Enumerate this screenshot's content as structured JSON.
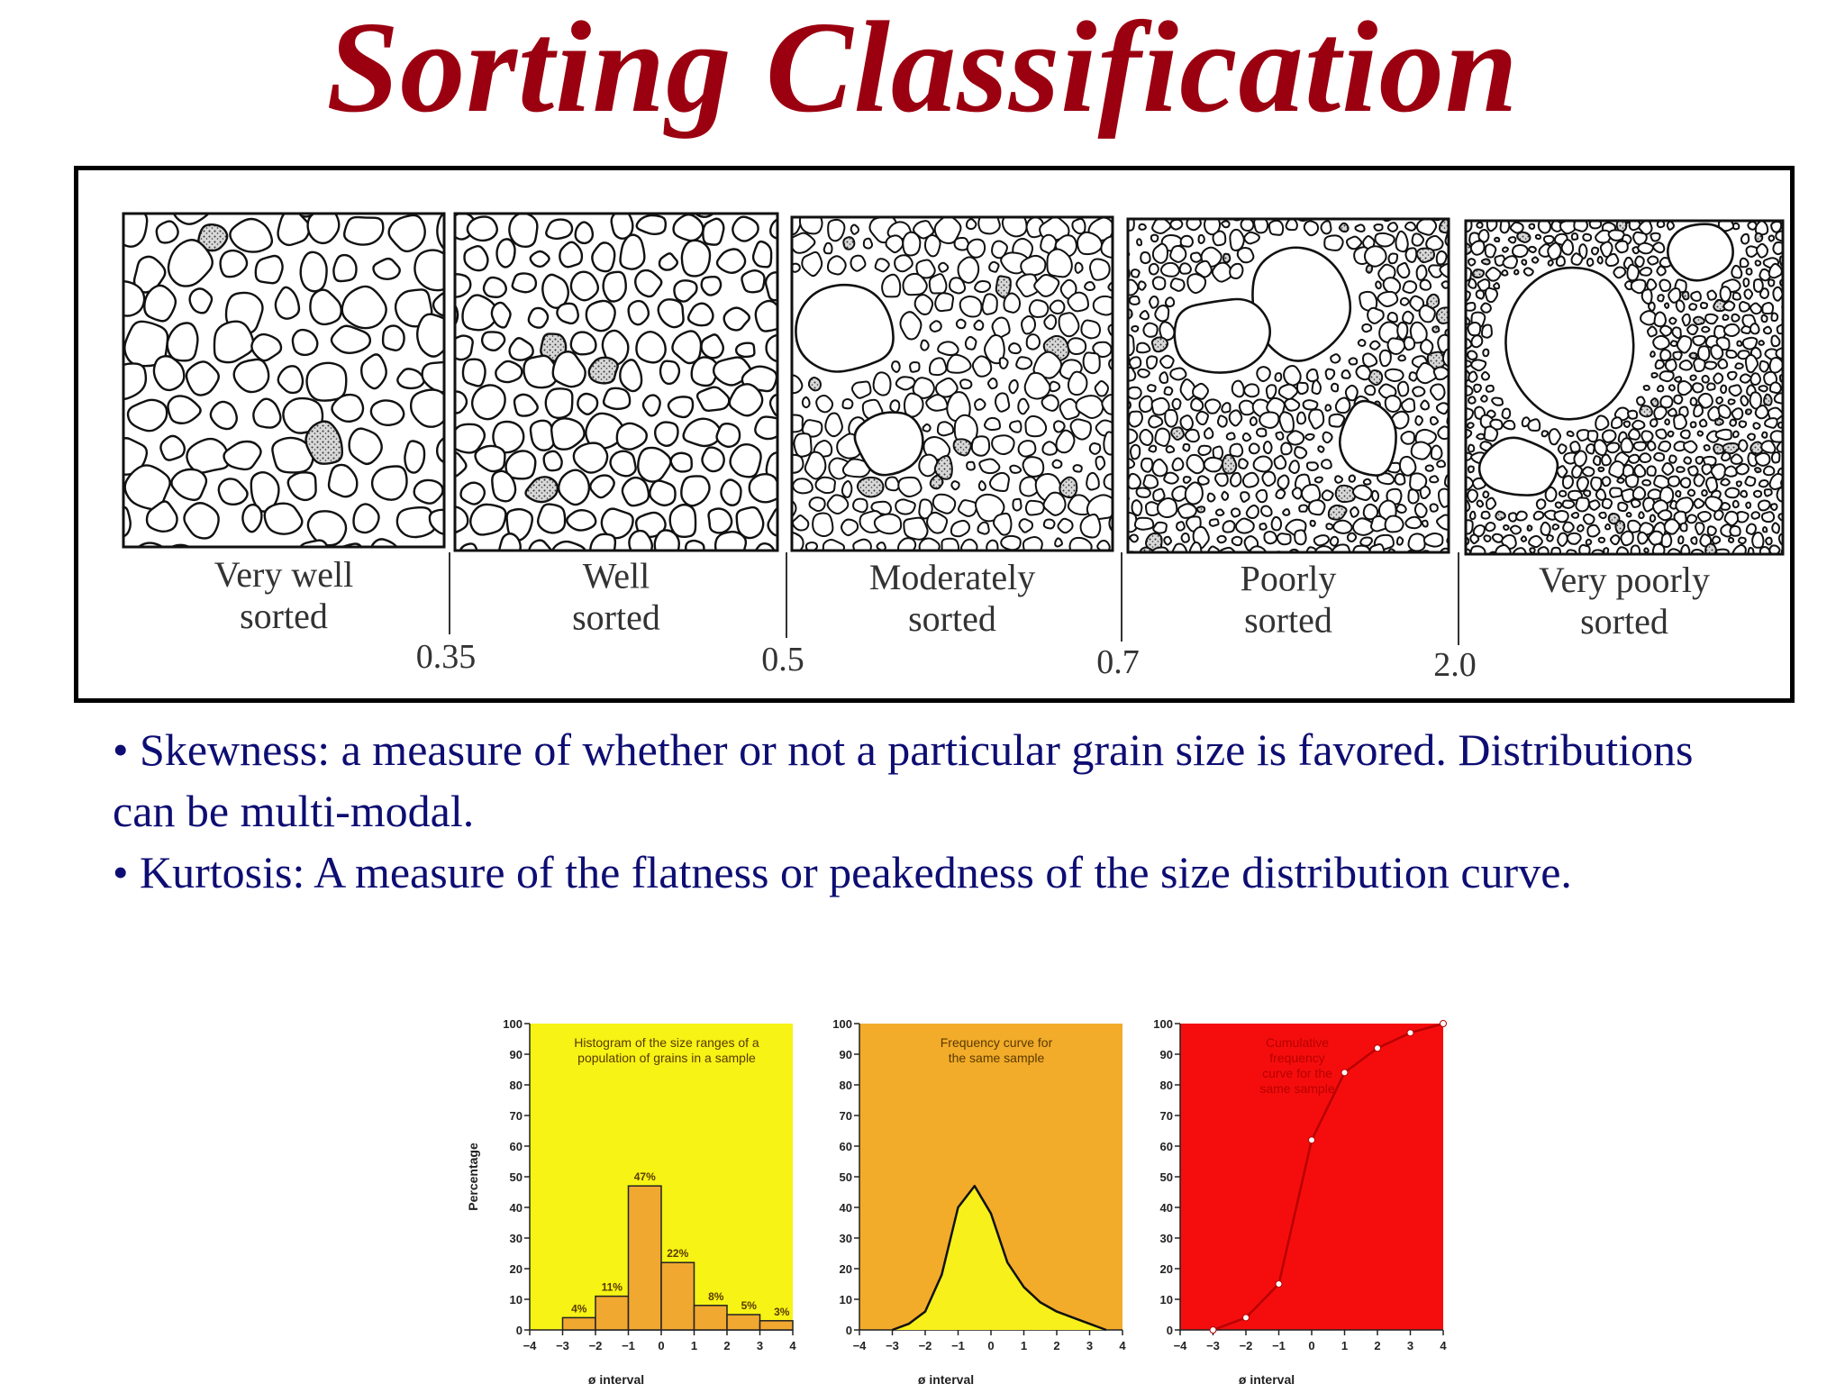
{
  "title": "Sorting Classification",
  "sorting_panels": [
    {
      "label_line1": "Very well",
      "label_line2": "sorted"
    },
    {
      "label_line1": "Well",
      "label_line2": "sorted"
    },
    {
      "label_line1": "Moderately",
      "label_line2": "sorted"
    },
    {
      "label_line1": "Poorly",
      "label_line2": "sorted"
    },
    {
      "label_line1": "Very poorly",
      "label_line2": "sorted"
    }
  ],
  "sorting_thresholds": [
    "0.35",
    "0.5",
    "0.7",
    "2.0"
  ],
  "bullets": [
    "• Skewness:  a measure of whether or not a particular grain size is favored. Distributions can be multi-modal.",
    "• Kurtosis:  A measure of the flatness or peakedness of the size distribution curve."
  ],
  "colors": {
    "title": "#9b0010",
    "bullet_text": "#0d0d73",
    "histogram_bg": "#f6f315",
    "frequency_bg": "#f2ac2a",
    "cumulative_bg": "#f50d0d",
    "bar_fill": "#f0a830"
  },
  "chart_data": [
    {
      "type": "bar",
      "title": "Histogram of the size ranges of a population of grains in a sample",
      "xlabel": "ø interval",
      "ylabel": "Percentage",
      "xlim": [
        -4,
        4
      ],
      "ylim": [
        0,
        100
      ],
      "xticks": [
        "-4",
        "-3",
        "-2",
        "-1",
        "0",
        "1",
        "2",
        "3",
        "4"
      ],
      "yticks": [
        "0",
        "10",
        "20",
        "30",
        "40",
        "50",
        "60",
        "70",
        "80",
        "90",
        "100"
      ],
      "bins": [
        [
          -3,
          -2
        ],
        [
          -2,
          -1
        ],
        [
          -1,
          0
        ],
        [
          0,
          1
        ],
        [
          1,
          2
        ],
        [
          2,
          3
        ],
        [
          3,
          4
        ]
      ],
      "values": [
        4,
        11,
        47,
        22,
        8,
        5,
        3
      ],
      "data_labels": [
        "4%",
        "11%",
        "47%",
        "22%",
        "8%",
        "5%",
        "3%"
      ]
    },
    {
      "type": "line",
      "title": "Frequency curve for the same sample",
      "xlabel": "ø interval",
      "ylabel": "",
      "xlim": [
        -4,
        4
      ],
      "ylim": [
        0,
        100
      ],
      "xticks": [
        "-4",
        "-3",
        "-2",
        "-1",
        "0",
        "1",
        "2",
        "3",
        "4"
      ],
      "yticks": [
        "0",
        "10",
        "20",
        "30",
        "40",
        "50",
        "60",
        "70",
        "80",
        "90",
        "100"
      ],
      "x": [
        -3,
        -2.5,
        -2,
        -1.5,
        -1,
        -0.5,
        0,
        0.5,
        1,
        1.5,
        2,
        2.5,
        3,
        3.5
      ],
      "y": [
        0,
        2,
        6,
        18,
        40,
        47,
        38,
        22,
        14,
        9,
        6,
        4,
        2,
        0
      ]
    },
    {
      "type": "line",
      "title": "Cumulative frequency curve for the same sample",
      "xlabel": "ø interval",
      "ylabel": "",
      "xlim": [
        -4,
        4
      ],
      "ylim": [
        0,
        100
      ],
      "xticks": [
        "-4",
        "-3",
        "-2",
        "-1",
        "0",
        "1",
        "2",
        "3",
        "4"
      ],
      "yticks": [
        "0",
        "10",
        "20",
        "30",
        "40",
        "50",
        "60",
        "70",
        "80",
        "90",
        "100"
      ],
      "x": [
        -3,
        -2,
        -1,
        0,
        1,
        2,
        3,
        4
      ],
      "y": [
        0,
        4,
        15,
        62,
        84,
        92,
        97,
        100
      ]
    }
  ]
}
